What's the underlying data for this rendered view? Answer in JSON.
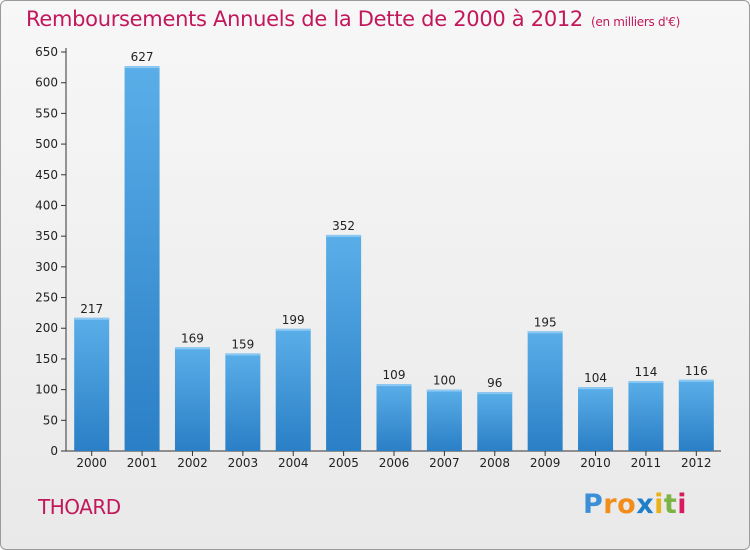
{
  "chart_data": {
    "type": "bar",
    "title": "Remboursements Annuels de la Dette de 2000 à 2012",
    "subtitle": "(en milliers d'€)",
    "xlabel": "",
    "ylabel": "",
    "categories": [
      "2000",
      "2001",
      "2002",
      "2003",
      "2004",
      "2005",
      "2006",
      "2007",
      "2008",
      "2009",
      "2010",
      "2011",
      "2012"
    ],
    "values": [
      217,
      627,
      169,
      159,
      199,
      352,
      109,
      100,
      96,
      195,
      104,
      114,
      116
    ],
    "ylim": [
      0,
      650
    ],
    "yticks": [
      0,
      50,
      100,
      150,
      200,
      250,
      300,
      350,
      400,
      450,
      500,
      550,
      600,
      650
    ],
    "grid": false,
    "bar_color": "#3a8fd6"
  },
  "footer": {
    "place": "THOARD",
    "logo_letters": [
      "P",
      "r",
      "o",
      "x",
      "i",
      "t",
      "i"
    ]
  },
  "colors": {
    "accent": "#c2185b",
    "bar_light": "#5aaee8",
    "bar_dark": "#2a7fc6"
  }
}
